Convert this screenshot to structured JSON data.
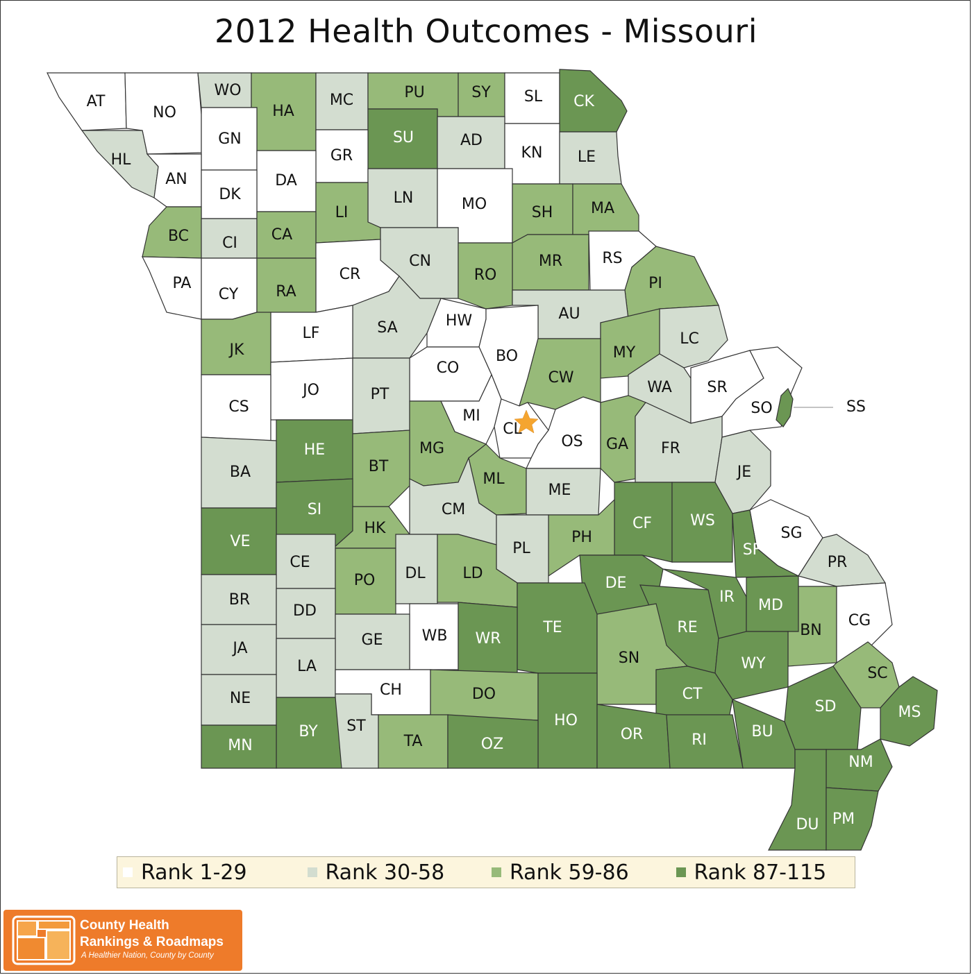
{
  "title": "2012 Health Outcomes - Missouri",
  "colors": {
    "rank_1_29": "#ffffff",
    "rank_30_58": "#d3ddd0",
    "rank_59_86": "#97ba79",
    "rank_87_115": "#6b9653",
    "star": "#f5a530",
    "legend_bg": "#fcf5dd",
    "logo_orange": "#ee7b2a"
  },
  "legend": [
    {
      "label": "Rank 1-29",
      "color": "#ffffff"
    },
    {
      "label": "Rank 30-58",
      "color": "#d3ddd0"
    },
    {
      "label": "Rank 59-86",
      "color": "#97ba79"
    },
    {
      "label": "Rank 87-115",
      "color": "#6b9653"
    }
  ],
  "counties": [
    {
      "code": "AT",
      "tier": 1
    },
    {
      "code": "NO",
      "tier": 1
    },
    {
      "code": "WO",
      "tier": 2
    },
    {
      "code": "HA",
      "tier": 3
    },
    {
      "code": "MC",
      "tier": 2
    },
    {
      "code": "PU",
      "tier": 3
    },
    {
      "code": "SY",
      "tier": 3
    },
    {
      "code": "SL",
      "tier": 1
    },
    {
      "code": "CK",
      "tier": 4
    },
    {
      "code": "HL",
      "tier": 2
    },
    {
      "code": "GN",
      "tier": 1
    },
    {
      "code": "SU",
      "tier": 4
    },
    {
      "code": "AD",
      "tier": 2
    },
    {
      "code": "GR",
      "tier": 1
    },
    {
      "code": "KN",
      "tier": 1
    },
    {
      "code": "LE",
      "tier": 2
    },
    {
      "code": "AN",
      "tier": 1
    },
    {
      "code": "DA",
      "tier": 1
    },
    {
      "code": "DK",
      "tier": 1
    },
    {
      "code": "LN",
      "tier": 2
    },
    {
      "code": "MO",
      "tier": 1
    },
    {
      "code": "SH",
      "tier": 3
    },
    {
      "code": "MA",
      "tier": 3
    },
    {
      "code": "LI",
      "tier": 3
    },
    {
      "code": "BC",
      "tier": 3
    },
    {
      "code": "CI",
      "tier": 2
    },
    {
      "code": "CA",
      "tier": 3
    },
    {
      "code": "CN",
      "tier": 2
    },
    {
      "code": "RS",
      "tier": 1
    },
    {
      "code": "MR",
      "tier": 3
    },
    {
      "code": "RO",
      "tier": 3
    },
    {
      "code": "CR",
      "tier": 1
    },
    {
      "code": "PA",
      "tier": 1
    },
    {
      "code": "CY",
      "tier": 1
    },
    {
      "code": "RA",
      "tier": 3
    },
    {
      "code": "PI",
      "tier": 3
    },
    {
      "code": "AU",
      "tier": 2
    },
    {
      "code": "HW",
      "tier": 1
    },
    {
      "code": "SA",
      "tier": 2
    },
    {
      "code": "LF",
      "tier": 1
    },
    {
      "code": "JK",
      "tier": 3
    },
    {
      "code": "LC",
      "tier": 2
    },
    {
      "code": "MY",
      "tier": 3
    },
    {
      "code": "BO",
      "tier": 1
    },
    {
      "code": "CW",
      "tier": 3
    },
    {
      "code": "CO",
      "tier": 1
    },
    {
      "code": "WA",
      "tier": 2
    },
    {
      "code": "SR",
      "tier": 1
    },
    {
      "code": "JO",
      "tier": 1
    },
    {
      "code": "PT",
      "tier": 2
    },
    {
      "code": "CS",
      "tier": 1
    },
    {
      "code": "SO",
      "tier": 1
    },
    {
      "code": "SS",
      "tier": 4
    },
    {
      "code": "MI",
      "tier": 1
    },
    {
      "code": "CL",
      "tier": 1
    },
    {
      "code": "OS",
      "tier": 1
    },
    {
      "code": "GA",
      "tier": 3
    },
    {
      "code": "FR",
      "tier": 2
    },
    {
      "code": "MG",
      "tier": 3
    },
    {
      "code": "HE",
      "tier": 4
    },
    {
      "code": "BT",
      "tier": 3
    },
    {
      "code": "JE",
      "tier": 2
    },
    {
      "code": "BA",
      "tier": 2
    },
    {
      "code": "ML",
      "tier": 3
    },
    {
      "code": "ME",
      "tier": 2
    },
    {
      "code": "CM",
      "tier": 2
    },
    {
      "code": "SI",
      "tier": 4
    },
    {
      "code": "CF",
      "tier": 4
    },
    {
      "code": "WS",
      "tier": 4
    },
    {
      "code": "VE",
      "tier": 4
    },
    {
      "code": "HK",
      "tier": 3
    },
    {
      "code": "SG",
      "tier": 1
    },
    {
      "code": "PH",
      "tier": 3
    },
    {
      "code": "SF",
      "tier": 4
    },
    {
      "code": "PL",
      "tier": 2
    },
    {
      "code": "CE",
      "tier": 2
    },
    {
      "code": "PR",
      "tier": 2
    },
    {
      "code": "PO",
      "tier": 3
    },
    {
      "code": "DL",
      "tier": 2
    },
    {
      "code": "LD",
      "tier": 3
    },
    {
      "code": "DE",
      "tier": 4
    },
    {
      "code": "IR",
      "tier": 4
    },
    {
      "code": "BR",
      "tier": 2
    },
    {
      "code": "MD",
      "tier": 4
    },
    {
      "code": "DD",
      "tier": 2
    },
    {
      "code": "TE",
      "tier": 4
    },
    {
      "code": "RE",
      "tier": 4
    },
    {
      "code": "BN",
      "tier": 3
    },
    {
      "code": "CG",
      "tier": 1
    },
    {
      "code": "JA",
      "tier": 2
    },
    {
      "code": "WB",
      "tier": 1
    },
    {
      "code": "GE",
      "tier": 2
    },
    {
      "code": "WR",
      "tier": 4
    },
    {
      "code": "SN",
      "tier": 3
    },
    {
      "code": "LA",
      "tier": 2
    },
    {
      "code": "WY",
      "tier": 4
    },
    {
      "code": "SC",
      "tier": 3
    },
    {
      "code": "CH",
      "tier": 1
    },
    {
      "code": "DO",
      "tier": 3
    },
    {
      "code": "CT",
      "tier": 4
    },
    {
      "code": "NE",
      "tier": 2
    },
    {
      "code": "SD",
      "tier": 4
    },
    {
      "code": "ST",
      "tier": 2
    },
    {
      "code": "HO",
      "tier": 4
    },
    {
      "code": "MS",
      "tier": 4
    },
    {
      "code": "BY",
      "tier": 4
    },
    {
      "code": "MN",
      "tier": 4
    },
    {
      "code": "TA",
      "tier": 3
    },
    {
      "code": "OZ",
      "tier": 4
    },
    {
      "code": "OR",
      "tier": 4
    },
    {
      "code": "RI",
      "tier": 4
    },
    {
      "code": "BU",
      "tier": 4
    },
    {
      "code": "NM",
      "tier": 4
    },
    {
      "code": "DU",
      "tier": 4
    },
    {
      "code": "PM",
      "tier": 4
    }
  ],
  "logo": {
    "line1": "County Health",
    "line2": "Rankings & Roadmaps",
    "tagline": "A Healthier Nation, County by County"
  }
}
